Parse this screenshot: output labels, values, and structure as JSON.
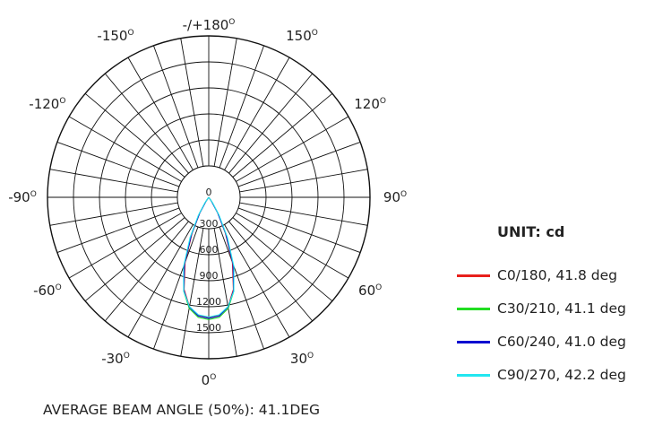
{
  "chart_data": {
    "type": "polar",
    "unit_title": "UNIT: cd",
    "angle_labels": [
      {
        "deg": 180,
        "main": "-/+180",
        "sup": "O"
      },
      {
        "deg": -150,
        "main": "-150",
        "sup": "O"
      },
      {
        "deg": 150,
        "main": "150",
        "sup": "O"
      },
      {
        "deg": -120,
        "main": "-120",
        "sup": "O"
      },
      {
        "deg": 120,
        "main": "120",
        "sup": "O"
      },
      {
        "deg": -90,
        "main": "-90",
        "sup": "O"
      },
      {
        "deg": 90,
        "main": "90",
        "sup": "O"
      },
      {
        "deg": -60,
        "main": "-60",
        "sup": "O"
      },
      {
        "deg": 60,
        "main": "60",
        "sup": "O"
      },
      {
        "deg": -30,
        "main": "-30",
        "sup": "O"
      },
      {
        "deg": 30,
        "main": "30",
        "sup": "O"
      },
      {
        "deg": 0,
        "main": "0",
        "sup": "O"
      }
    ],
    "radial_ticks": [
      "0",
      "300",
      "600",
      "900",
      "1200",
      "1500"
    ],
    "radial_max": 1500,
    "series": [
      {
        "name": "C0/180, 41.8 deg",
        "color": "#e8201c",
        "points": [
          [
            0,
            1390
          ],
          [
            5,
            1370
          ],
          [
            10,
            1280
          ],
          [
            15,
            1100
          ],
          [
            20,
            800
          ],
          [
            25,
            450
          ],
          [
            30,
            200
          ],
          [
            35,
            60
          ],
          [
            40,
            0
          ]
        ]
      },
      {
        "name": "C30/210, 41.1 deg",
        "color": "#22dd22",
        "points": [
          [
            0,
            1410
          ],
          [
            5,
            1390
          ],
          [
            10,
            1300
          ],
          [
            15,
            1120
          ],
          [
            20,
            830
          ],
          [
            25,
            480
          ],
          [
            30,
            210
          ],
          [
            35,
            60
          ],
          [
            40,
            0
          ]
        ]
      },
      {
        "name": "C60/240, 41.0 deg",
        "color": "#0a0ad0",
        "points": [
          [
            0,
            1395
          ],
          [
            5,
            1375
          ],
          [
            10,
            1285
          ],
          [
            15,
            1110
          ],
          [
            20,
            820
          ],
          [
            25,
            470
          ],
          [
            30,
            205
          ],
          [
            35,
            55
          ],
          [
            40,
            0
          ]
        ]
      },
      {
        "name": "C90/270, 42.2 deg",
        "color": "#22e6f0",
        "points": [
          [
            0,
            1380
          ],
          [
            5,
            1360
          ],
          [
            10,
            1280
          ],
          [
            15,
            1120
          ],
          [
            20,
            850
          ],
          [
            25,
            510
          ],
          [
            30,
            240
          ],
          [
            35,
            80
          ],
          [
            40,
            0
          ]
        ]
      }
    ],
    "footer": "AVERAGE BEAM ANGLE (50%): 41.1DEG"
  }
}
